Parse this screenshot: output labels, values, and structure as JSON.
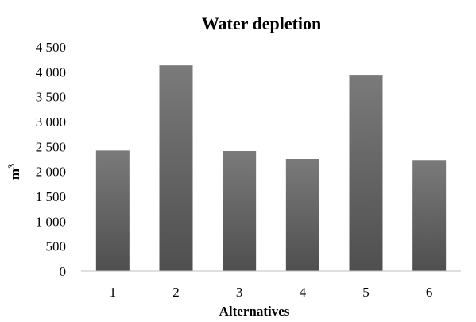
{
  "chart_data": {
    "type": "bar",
    "title": "Water depletion",
    "xlabel": "Alternatives",
    "ylabel_base": "m",
    "ylabel_sup": "3",
    "categories": [
      "1",
      "2",
      "3",
      "4",
      "5",
      "6"
    ],
    "values": [
      2420,
      4130,
      2410,
      2250,
      3940,
      2230
    ],
    "ylim": [
      0,
      4500
    ],
    "yticks": [
      0,
      500,
      1000,
      1500,
      2000,
      2500,
      3000,
      3500,
      4000,
      4500
    ],
    "ytick_labels": [
      "0",
      "500",
      "1 000",
      "1 500",
      "2 000",
      "2 500",
      "3 000",
      "3 500",
      "4 000",
      "4 500"
    ],
    "grid": false,
    "legend": "none",
    "bar_color_top": "#7a7a7a",
    "bar_color_bottom": "#4f4f4f"
  }
}
